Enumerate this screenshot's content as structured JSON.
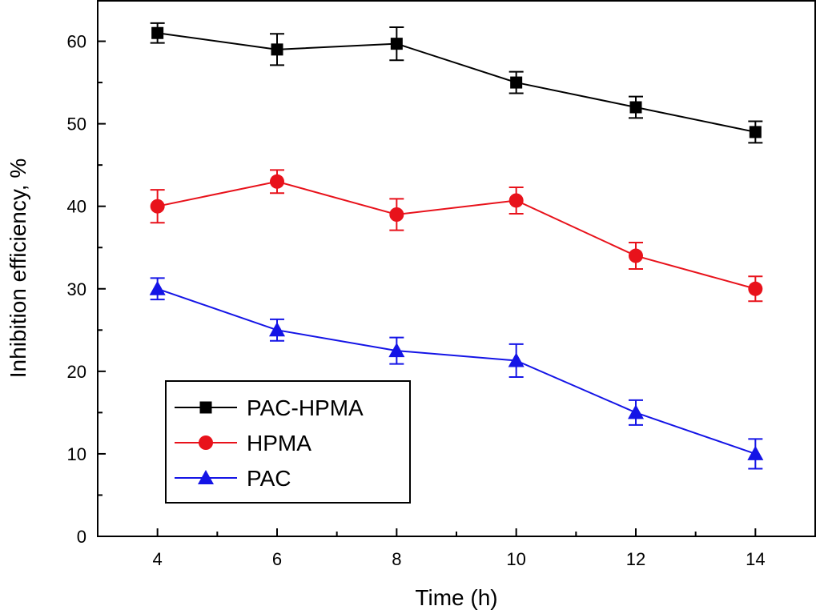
{
  "chart_data": {
    "type": "line",
    "title": "",
    "xlabel": "Time (h)",
    "ylabel": "Inhibition efficiency, %",
    "xlim": [
      3,
      15
    ],
    "ylim": [
      0,
      65
    ],
    "x_ticks": [
      4,
      6,
      8,
      10,
      12,
      14
    ],
    "x_tick_labels": [
      "4",
      "6",
      "8",
      "10",
      "12",
      "14"
    ],
    "x_minor_ticks": [
      5,
      7,
      9,
      11,
      13
    ],
    "y_ticks": [
      0,
      10,
      20,
      30,
      40,
      50,
      60
    ],
    "y_tick_labels": [
      "0",
      "10",
      "20",
      "30",
      "40",
      "50",
      "60"
    ],
    "y_minor_ticks": [
      5,
      15,
      25,
      35,
      45,
      55
    ],
    "grid": false,
    "legend_position": "bottom-left",
    "x": [
      4,
      6,
      8,
      10,
      12,
      14
    ],
    "series": [
      {
        "name": "PAC-HPMA",
        "color": "#000000",
        "marker": "square",
        "values": [
          61.0,
          59.0,
          59.7,
          55.0,
          52.0,
          49.0
        ],
        "errors": [
          1.2,
          1.9,
          2.0,
          1.3,
          1.3,
          1.3
        ]
      },
      {
        "name": "HPMA",
        "color": "#e8121b",
        "marker": "circle",
        "values": [
          40.0,
          43.0,
          39.0,
          40.7,
          34.0,
          30.0
        ],
        "errors": [
          2.0,
          1.4,
          1.9,
          1.6,
          1.6,
          1.5
        ]
      },
      {
        "name": "PAC",
        "color": "#1414e6",
        "marker": "triangle",
        "values": [
          30.0,
          25.0,
          22.5,
          21.3,
          15.0,
          10.0
        ],
        "errors": [
          1.3,
          1.3,
          1.6,
          2.0,
          1.5,
          1.8
        ]
      }
    ]
  }
}
